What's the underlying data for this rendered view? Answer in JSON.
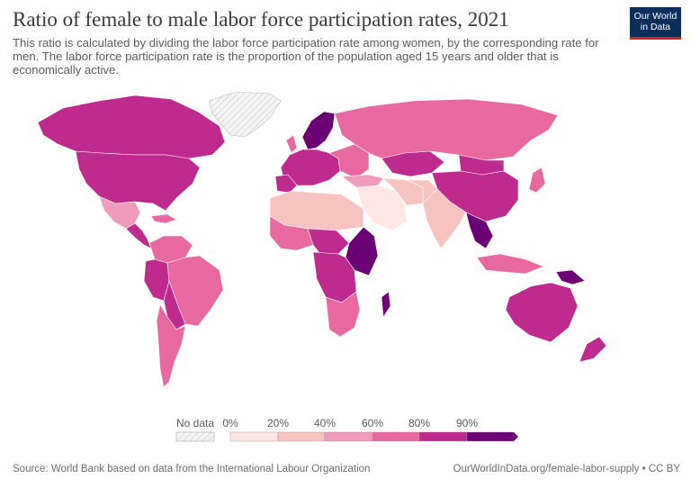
{
  "header": {
    "title": "Ratio of female to male labor force participation rates, 2021",
    "subtitle": "This ratio is calculated by dividing the labor force participation rate among women, by the corresponding rate for men. The labor force participation rate is the proportion of the population aged 15 years and older that is economically active.",
    "logo_line1": "Our World",
    "logo_line2": "in Data"
  },
  "legend": {
    "no_data_label": "No data",
    "ticks": [
      "0%",
      "20%",
      "40%",
      "60%",
      "80%",
      "90%"
    ],
    "bins": [
      {
        "range": "0-20",
        "color": "#fde6e3"
      },
      {
        "range": "20-40",
        "color": "#f7c3c1"
      },
      {
        "range": "40-60",
        "color": "#f09bbb"
      },
      {
        "range": "60-80",
        "color": "#e8699f"
      },
      {
        "range": "80-90",
        "color": "#bf2a8e"
      },
      {
        "range": "90+",
        "color": "#6b0074"
      }
    ],
    "no_data_color": "#e8e8e8"
  },
  "footer": {
    "source": "Source: World Bank based on data from the International Labour Organization",
    "url": "OurWorldInData.org/female-labor-supply • CC BY"
  }
}
